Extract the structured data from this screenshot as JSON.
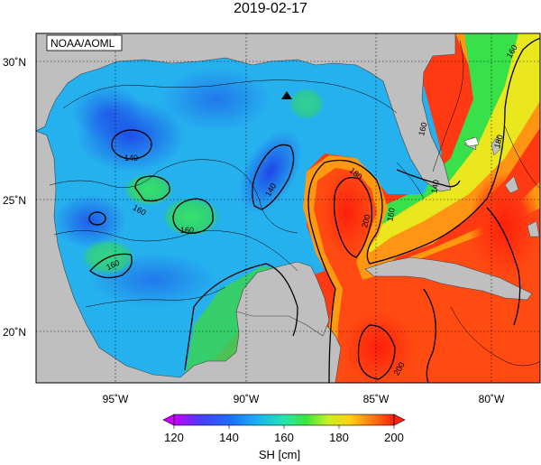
{
  "title": "2019-02-17",
  "credit": "NOAA/AOML",
  "colorbar": {
    "label": "SH [cm]",
    "ticks": [
      "120",
      "140",
      "160",
      "180",
      "200"
    ]
  },
  "map": {
    "lon_ticks": [
      "95˚W",
      "90˚W",
      "85˚W",
      "80˚W"
    ],
    "lat_ticks": [
      "30˚N",
      "25˚N",
      "20˚N"
    ],
    "contour_labels": [
      "140",
      "140",
      "160",
      "160",
      "160",
      "140",
      "160",
      "180",
      "160",
      "180",
      "200",
      "200",
      "160"
    ]
  },
  "colors": {
    "land": "#bfbfbf",
    "low": "#1f3cff",
    "mid": "#35e06a",
    "high": "#ff2a10"
  }
}
